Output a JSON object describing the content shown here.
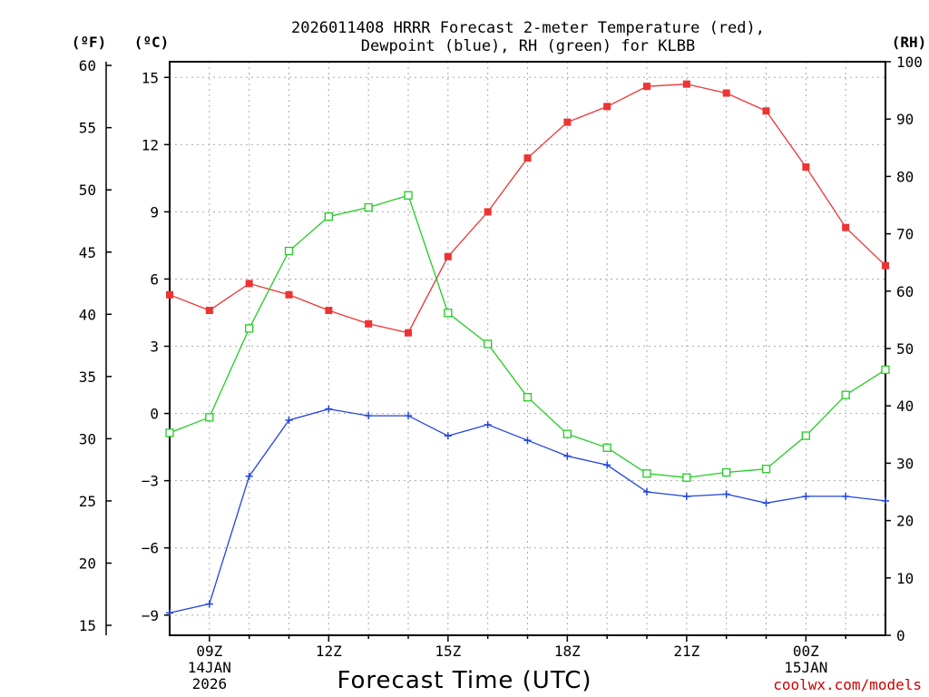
{
  "chart_data": {
    "type": "line",
    "title_line1": "2026011408 HRRR Forecast 2-meter Temperature (red),",
    "title_line2": "Dewpoint (blue), RH (green) for KLBB",
    "xlabel": "Forecast Time (UTC)",
    "credit": "coolwx.com/models",
    "units": {
      "fahrenheit": "(ºF)",
      "celsius": "(ºC)",
      "rh": "(RH)"
    },
    "x_hours": [
      8,
      9,
      10,
      11,
      12,
      13,
      14,
      15,
      16,
      17,
      18,
      19,
      20,
      21,
      22,
      23,
      24,
      25,
      26
    ],
    "x_range": [
      8,
      26
    ],
    "x_ticks": [
      {
        "hour": 9,
        "lines": [
          "09Z",
          "14JAN",
          "2026"
        ]
      },
      {
        "hour": 12,
        "lines": [
          "12Z"
        ]
      },
      {
        "hour": 15,
        "lines": [
          "15Z"
        ]
      },
      {
        "hour": 18,
        "lines": [
          "18Z"
        ]
      },
      {
        "hour": 21,
        "lines": [
          "21Z"
        ]
      },
      {
        "hour": 24,
        "lines": [
          "00Z",
          "15JAN"
        ]
      }
    ],
    "celsius_axis": {
      "range": [
        -9.9,
        15.7
      ],
      "ticks": [
        "15",
        "12",
        "9",
        "6",
        "3",
        "0",
        "−3",
        "−6",
        "−9"
      ],
      "tick_values": [
        15,
        12,
        9,
        6,
        3,
        0,
        -3,
        -6,
        -9
      ]
    },
    "fahrenheit_axis": {
      "range": [
        14.2,
        60.3
      ],
      "ticks": [
        "60",
        "55",
        "50",
        "45",
        "40",
        "35",
        "30",
        "25",
        "20",
        "15"
      ],
      "tick_values": [
        60,
        55,
        50,
        45,
        40,
        35,
        30,
        25,
        20,
        15
      ]
    },
    "rh_axis": {
      "range": [
        0,
        100
      ],
      "ticks": [
        "100",
        "90",
        "80",
        "70",
        "60",
        "50",
        "40",
        "30",
        "20",
        "10",
        "0"
      ],
      "tick_values": [
        100,
        90,
        80,
        70,
        60,
        50,
        40,
        30,
        20,
        10,
        0
      ]
    },
    "series": [
      {
        "name": "2-meter Temperature",
        "axis": "celsius",
        "color": "#ee3333",
        "marker": "filled-square",
        "values": [
          5.3,
          4.6,
          5.8,
          5.3,
          4.6,
          4.0,
          3.6,
          7.0,
          9.0,
          11.4,
          13.0,
          13.7,
          14.6,
          14.7,
          14.3,
          13.5,
          11.0,
          8.3,
          6.6
        ]
      },
      {
        "name": "Dewpoint",
        "axis": "celsius",
        "color": "#2244dd",
        "marker": "plus",
        "values": [
          -8.9,
          -8.5,
          -2.8,
          -0.3,
          0.2,
          -0.1,
          -0.1,
          -1.0,
          -0.5,
          -1.2,
          -1.9,
          -2.3,
          -3.5,
          -3.7,
          -3.6,
          -4.0,
          -3.7,
          -3.7,
          -3.9
        ]
      },
      {
        "name": "Relative Humidity",
        "axis": "rh",
        "color": "#22cc22",
        "marker": "open-square",
        "values": [
          35.3,
          38.0,
          53.5,
          67.0,
          73.0,
          74.6,
          76.7,
          56.2,
          50.8,
          41.5,
          35.1,
          32.7,
          28.2,
          27.5,
          28.4,
          29.0,
          34.8,
          41.9,
          46.3
        ]
      }
    ],
    "grid": true
  }
}
